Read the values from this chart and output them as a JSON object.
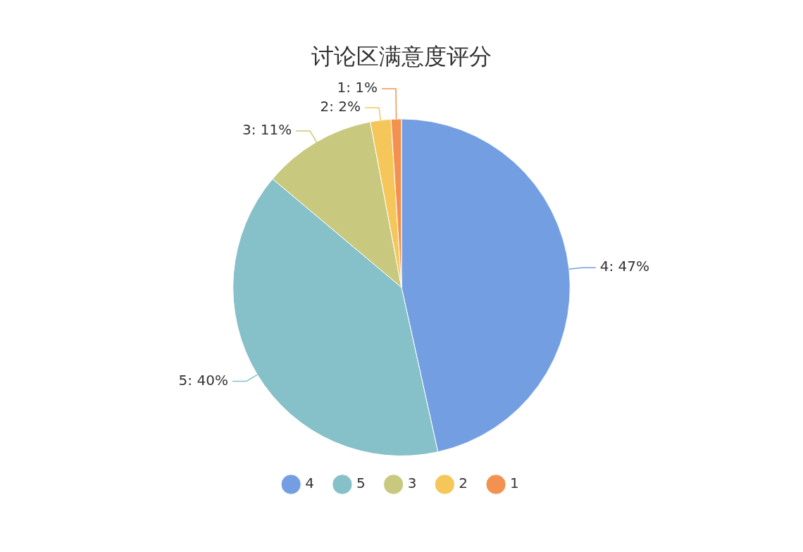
{
  "chart_data": {
    "type": "pie",
    "title": "讨论区满意度评分",
    "categories": [
      "4",
      "5",
      "3",
      "2",
      "1"
    ],
    "values": [
      47,
      40,
      11,
      2,
      1
    ],
    "colors": [
      "#739fe2",
      "#86c0c8",
      "#c8c87e",
      "#f5c75a",
      "#f39250"
    ],
    "value_labels": [
      "4: 47%",
      "5: 40%",
      "3: 11%",
      "2: 2%",
      "1: 1%"
    ],
    "legend": "bottom"
  }
}
